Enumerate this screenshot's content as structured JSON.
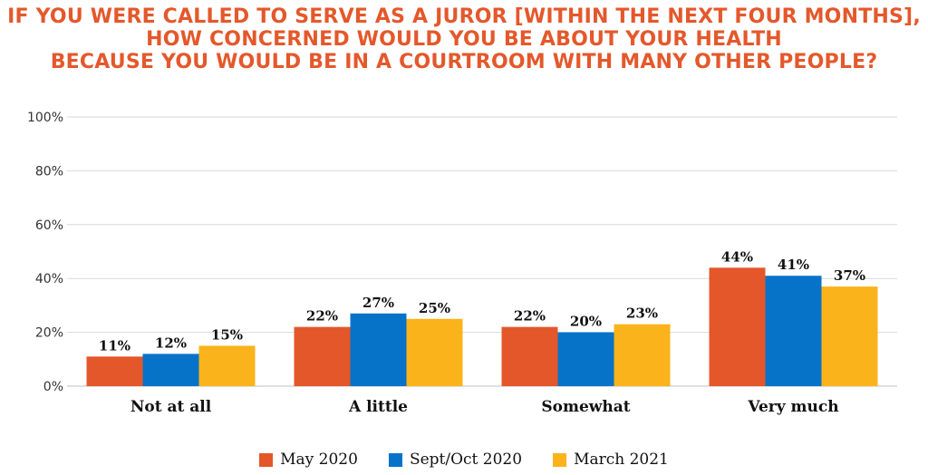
{
  "title_lines": [
    "IF YOU WERE CALLED TO SERVE AS A JUROR [WITHIN THE NEXT FOUR MONTHS],",
    "HOW CONCERNED WOULD YOU BE ABOUT YOUR HEALTH",
    "BECAUSE YOU WOULD BE IN A COURTROOM WITH MANY OTHER PEOPLE?"
  ],
  "colors": {
    "title": "#E4582B",
    "grid": "#d9d9d9",
    "axis": "#bfbfbf"
  },
  "chart_data": {
    "type": "bar",
    "categories": [
      "Not at all",
      "A little",
      "Somewhat",
      "Very much"
    ],
    "series": [
      {
        "name": "May 2020",
        "color": "#E4572A",
        "values": [
          11,
          22,
          22,
          44
        ],
        "labels": [
          "11%",
          "22%",
          "22%",
          "44%"
        ]
      },
      {
        "name": "Sept/Oct 2020",
        "color": "#0673C9",
        "values": [
          12,
          27,
          20,
          41
        ],
        "labels": [
          "12%",
          "27%",
          "20%",
          "41%"
        ]
      },
      {
        "name": "March 2021",
        "color": "#FBB31B",
        "values": [
          15,
          25,
          23,
          37
        ],
        "labels": [
          "15%",
          "25%",
          "23%",
          "37%"
        ]
      }
    ],
    "ylim": [
      0,
      100
    ],
    "yticks": [
      0,
      20,
      40,
      60,
      80,
      100
    ],
    "ytick_labels": [
      "0%",
      "20%",
      "40%",
      "60%",
      "80%",
      "100%"
    ],
    "grid": true,
    "legend_position": "bottom"
  }
}
